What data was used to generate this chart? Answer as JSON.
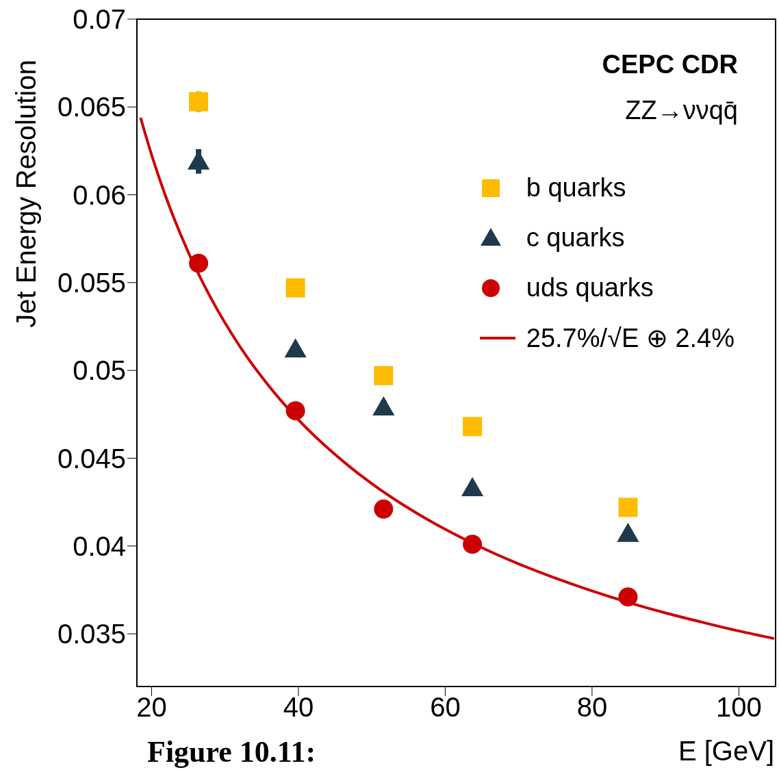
{
  "chart_data": {
    "type": "scatter",
    "xlabel": "E [GeV]",
    "ylabel": "Jet Energy Resolution",
    "annotations": [
      "CEPC CDR",
      "ZZ→ννqq̄",
      "Figure 10.11:"
    ],
    "xlim": [
      18,
      105
    ],
    "xticks": [
      20,
      40,
      60,
      80,
      100
    ],
    "ylim": [
      0.032,
      0.07
    ],
    "yticks": [
      0.035,
      0.04,
      0.045,
      0.05,
      0.055,
      0.06,
      0.065,
      0.07
    ],
    "legend": "top right",
    "series": [
      {
        "name": "b quarks",
        "marker": "square",
        "color": "#ffbb00",
        "x": [
          26.4,
          39.6,
          51.6,
          63.7,
          84.9
        ],
        "values": [
          0.0653,
          0.0547,
          0.0497,
          0.0468,
          0.0422
        ],
        "errors": [
          0.0006,
          0.0004,
          0.0003,
          null,
          null
        ]
      },
      {
        "name": "c quarks",
        "marker": "triangle",
        "color": "#1e3a4c",
        "x": [
          26.4,
          39.6,
          51.6,
          63.7,
          84.9
        ],
        "values": [
          0.0619,
          0.0512,
          0.0479,
          0.0433,
          0.0407
        ],
        "errors": [
          0.0007,
          null,
          0.0004,
          null,
          null
        ]
      },
      {
        "name": "uds quarks",
        "marker": "circle",
        "color": "#cc0000",
        "x": [
          26.4,
          39.6,
          51.6,
          63.7,
          84.9
        ],
        "values": [
          0.0561,
          0.0477,
          0.0421,
          0.0401,
          0.0371
        ]
      },
      {
        "name": "25.7%/√E ⊕ 2.4%",
        "type": "line",
        "marker": "none",
        "color": "#cc0000",
        "x": [
          18.5,
          20,
          22,
          25,
          28,
          32,
          36,
          40,
          45,
          50,
          55,
          60,
          65,
          70,
          75,
          80,
          85,
          90,
          95,
          100,
          104.8
        ],
        "values": [
          0.06439,
          0.06228,
          0.05982,
          0.05673,
          0.05418,
          0.05138,
          0.0491,
          0.04719,
          0.04521,
          0.04355,
          0.04215,
          0.04095,
          0.0399,
          0.03898,
          0.03817,
          0.03744,
          0.03678,
          0.03619,
          0.03566,
          0.03516,
          0.03473
        ]
      }
    ]
  }
}
